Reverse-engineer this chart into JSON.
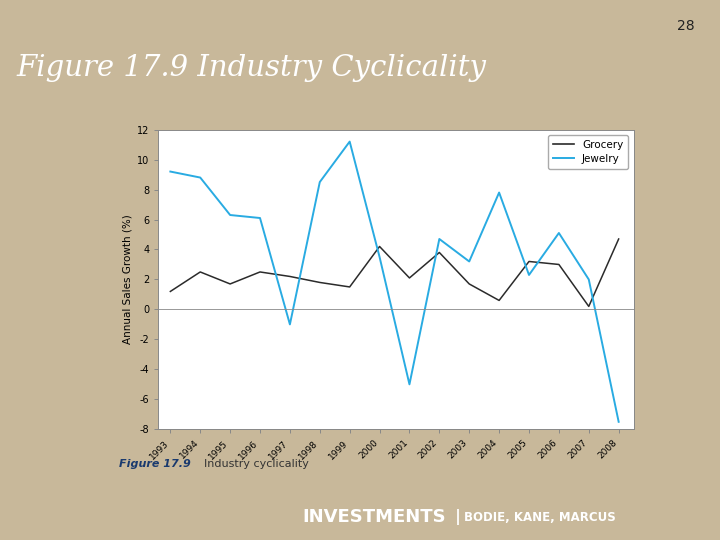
{
  "years": [
    1993,
    1994,
    1995,
    1996,
    1997,
    1998,
    1999,
    2000,
    2001,
    2002,
    2003,
    2004,
    2005,
    2006,
    2007,
    2008
  ],
  "grocery": [
    1.2,
    2.5,
    1.7,
    2.5,
    2.2,
    1.8,
    1.5,
    4.2,
    2.1,
    3.8,
    1.7,
    0.6,
    3.2,
    3.0,
    0.2,
    4.7
  ],
  "jewelry": [
    9.2,
    8.8,
    6.3,
    6.1,
    -1.0,
    8.5,
    11.2,
    3.5,
    -5.0,
    4.7,
    3.2,
    7.8,
    2.3,
    5.1,
    2.0,
    -7.5
  ],
  "title": "Figure 17.9 Industry Cyclicality",
  "slide_number": "28",
  "footer_main": "INVESTMENTS",
  "footer_pipe": " | ",
  "footer_sub": "BODIE, KANE, MARCUS",
  "ylabel": "Annual Sales Growth (%)",
  "ylim": [
    -8,
    12
  ],
  "yticks": [
    -8,
    -6,
    -4,
    -2,
    0,
    2,
    4,
    6,
    8,
    10,
    12
  ],
  "caption_bold": "Figure 17.9",
  "caption_normal": "  Industry cyclicality",
  "bg_color": "#C8B89A",
  "header_bg": "#0D1B6E",
  "header_text_color": "#FFFFFF",
  "footer_bg": "#0D1B6E",
  "chart_bg": "#FFFFFF",
  "grocery_color": "#2B2B2B",
  "jewelry_color": "#29ABE2",
  "caption_bg": "#D5E8F5",
  "panel_border": "#CCCCCC"
}
